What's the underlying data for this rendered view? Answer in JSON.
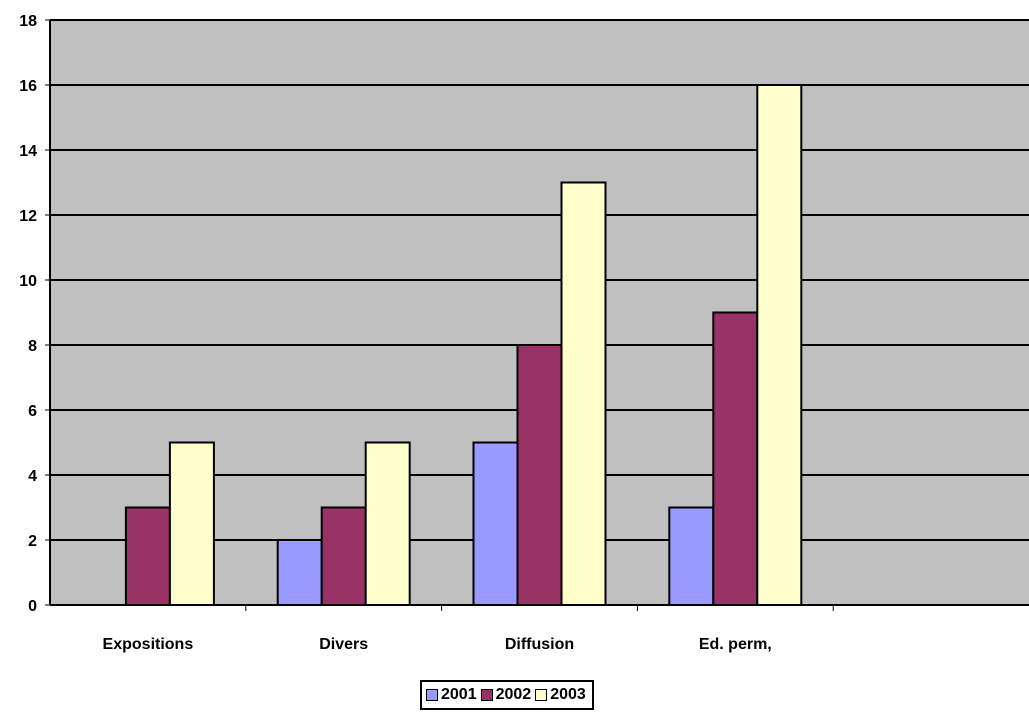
{
  "chart_data": {
    "type": "bar",
    "title": "",
    "xlabel": "",
    "ylabel": "",
    "categories": [
      "Expositions",
      "Divers",
      "Diffusion",
      "Ed. perm,",
      ""
    ],
    "series": [
      {
        "name": "2001",
        "values": [
          0,
          2,
          5,
          3,
          null
        ],
        "color": "#9999ff"
      },
      {
        "name": "2002",
        "values": [
          3,
          3,
          8,
          9,
          null
        ],
        "color": "#993366"
      },
      {
        "name": "2003",
        "values": [
          5,
          5,
          13,
          16,
          null
        ],
        "color": "#ffffcc"
      }
    ],
    "ylim": [
      0,
      18
    ],
    "yticks": [
      "0",
      "2",
      "4",
      "6",
      "8",
      "10",
      "12",
      "14",
      "16",
      "18"
    ],
    "grid": true,
    "plot_background": "#c0c0c0",
    "legend_position": "bottom"
  }
}
